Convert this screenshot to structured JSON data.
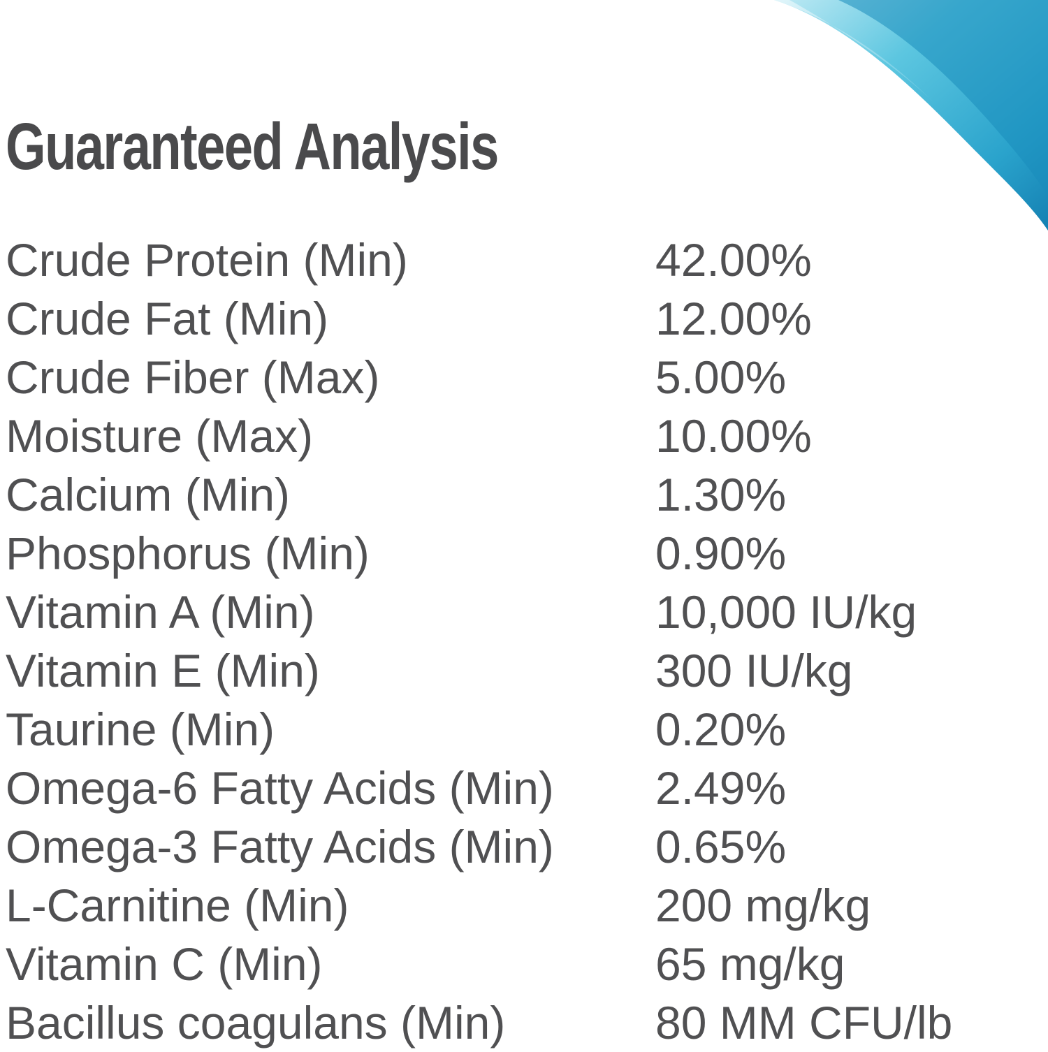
{
  "title": "Guaranteed Analysis",
  "colors": {
    "text": "#505052",
    "title": "#4a4a4c",
    "accent_light": "#9ee0ef",
    "accent_mid": "#3fb6d6",
    "accent_dark": "#1689b8"
  },
  "rows": [
    {
      "label": "Crude Protein (Min)",
      "value": "42.00%"
    },
    {
      "label": "Crude Fat (Min)",
      "value": "12.00%"
    },
    {
      "label": "Crude Fiber (Max)",
      "value": "5.00%"
    },
    {
      "label": "Moisture (Max)",
      "value": "10.00%"
    },
    {
      "label": "Calcium (Min)",
      "value": "1.30%"
    },
    {
      "label": "Phosphorus (Min)",
      "value": "0.90%"
    },
    {
      "label": "Vitamin A (Min)",
      "value": "10,000 IU/kg"
    },
    {
      "label": "Vitamin E (Min)",
      "value": "300 IU/kg"
    },
    {
      "label": "Taurine (Min)",
      "value": "0.20%"
    },
    {
      "label": "Omega-6 Fatty Acids (Min)",
      "value": "2.49%"
    },
    {
      "label": "Omega-3 Fatty Acids (Min)",
      "value": "0.65%"
    },
    {
      "label": "L-Carnitine (Min)",
      "value": "200 mg/kg"
    },
    {
      "label": "Vitamin C (Min)",
      "value": "65 mg/kg"
    },
    {
      "label": "Bacillus coagulans (Min)",
      "value": "80 MM CFU/lb"
    }
  ]
}
